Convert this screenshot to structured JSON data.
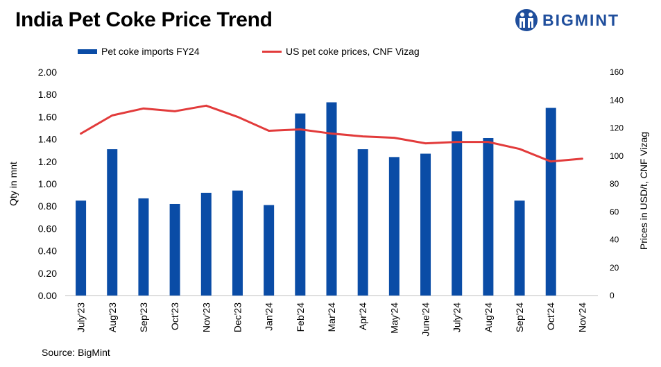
{
  "header": {
    "title": "India Pet Coke Price Trend",
    "brand": "BIGMINT"
  },
  "footer": {
    "source": "Source: BigMint"
  },
  "colors": {
    "bar": "#0a4ca6",
    "line": "#e23b3b",
    "brand": "#1f4e9c"
  },
  "chart_data": {
    "type": "bar",
    "categories": [
      "July'23",
      "Aug'23",
      "Sep'23",
      "Oct'23",
      "Nov'23",
      "Dec'23",
      "Jan'24",
      "Feb'24",
      "Mar'24",
      "Apr'24",
      "May'24",
      "June'24",
      "July'24",
      "Aug'24",
      "Sep'24",
      "Oct'24",
      "Nov'24"
    ],
    "series": [
      {
        "name": "Pet coke imports FY24",
        "type": "bar",
        "axis": "left",
        "values": [
          0.85,
          1.31,
          0.87,
          0.82,
          0.92,
          0.94,
          0.81,
          1.63,
          1.73,
          1.31,
          1.24,
          1.27,
          1.47,
          1.41,
          0.85,
          1.68,
          null
        ]
      },
      {
        "name": "US pet coke prices, CNF Vizag",
        "type": "line",
        "axis": "right",
        "values": [
          116,
          129,
          134,
          132,
          136,
          128,
          118,
          119,
          116,
          114,
          113,
          109,
          110,
          110,
          105,
          96,
          98
        ]
      }
    ],
    "ylabel": "Qty in mnt",
    "y2label": "Prices in USD/t, CNF Vizag",
    "ylim": [
      0,
      2
    ],
    "y2lim": [
      0,
      160
    ],
    "yticks": [
      "0.00",
      "0.20",
      "0.40",
      "0.60",
      "0.80",
      "1.00",
      "1.20",
      "1.40",
      "1.60",
      "1.80",
      "2.00"
    ],
    "y2ticks": [
      "0",
      "20",
      "40",
      "60",
      "80",
      "100",
      "120",
      "140",
      "160"
    ],
    "grid": false,
    "legend_position": "top"
  }
}
